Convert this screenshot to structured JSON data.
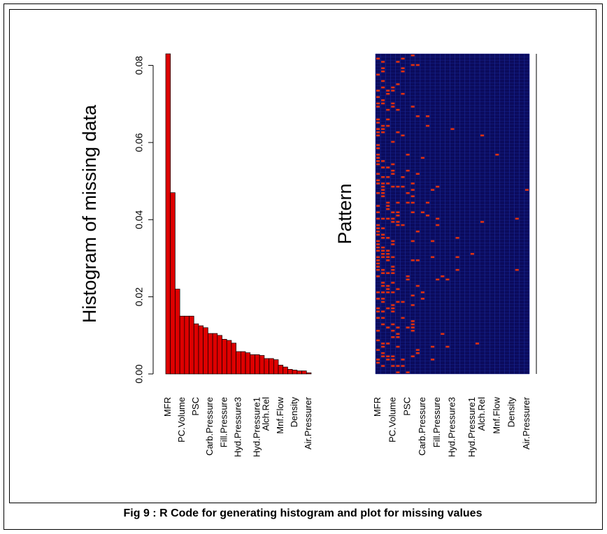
{
  "caption": "Fig 9 : R Code for generating histogram and plot for missing values",
  "chart_data": [
    {
      "type": "bar",
      "ylabel": "Histogram of missing data",
      "color": "#dd0000",
      "categories": [
        "MFR",
        null,
        null,
        "PC.Volume",
        null,
        null,
        "PSC",
        null,
        null,
        "Carb.Pressure",
        null,
        null,
        "Fill.Pressure",
        null,
        null,
        "Hyd.Pressure3",
        null,
        null,
        null,
        "Hyd.Pressure1",
        null,
        "Alch.Rel",
        null,
        null,
        "Mnf.Flow",
        null,
        null,
        "Density",
        null,
        null,
        "Air.Pressurer"
      ],
      "values": [
        0.083,
        0.047,
        0.022,
        0.015,
        0.015,
        0.015,
        0.013,
        0.0125,
        0.012,
        0.0105,
        0.0105,
        0.01,
        0.009,
        0.0087,
        0.008,
        0.0058,
        0.0058,
        0.0055,
        0.005,
        0.005,
        0.0048,
        0.004,
        0.004,
        0.0037,
        0.0023,
        0.0018,
        0.0012,
        0.001,
        0.0008,
        0.0008,
        0.0003
      ],
      "ylim": [
        0,
        0.083
      ],
      "yticks": [
        {
          "value": 0,
          "label": "0.00"
        },
        {
          "value": 0.02,
          "label": "0.02"
        },
        {
          "value": 0.04,
          "label": "0.04"
        },
        {
          "value": 0.06,
          "label": "0.06"
        },
        {
          "value": 0.08,
          "label": "0.08"
        }
      ]
    },
    {
      "type": "pattern",
      "ylabel": "Pattern",
      "categories": [
        "MFR",
        null,
        null,
        "PC.Volume",
        null,
        null,
        "PSC",
        null,
        null,
        "Carb.Pressure",
        null,
        null,
        "Fill.Pressure",
        null,
        null,
        "Hyd.Pressure3",
        null,
        null,
        null,
        "Hyd.Pressure1",
        null,
        "Alch.Rel",
        null,
        null,
        "Mnf.Flow",
        null,
        null,
        "Density",
        null,
        null,
        "Air.Pressurer"
      ]
    }
  ]
}
